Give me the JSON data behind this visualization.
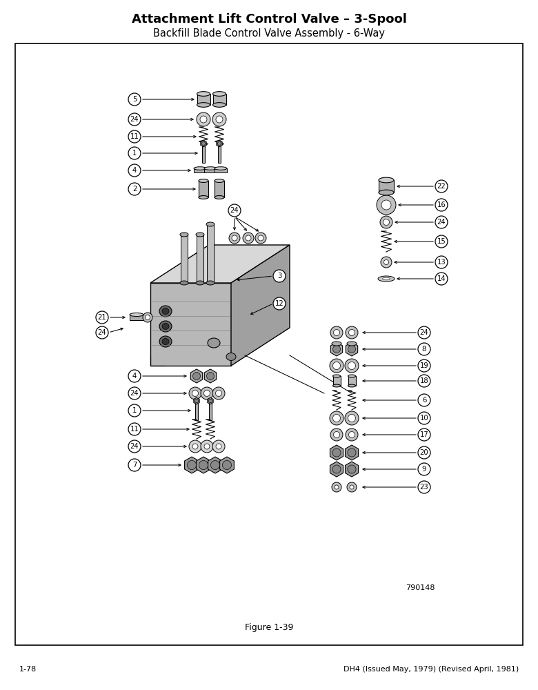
{
  "title_main": "Attachment Lift Control Valve – 3-Spool",
  "title_sub": "Backfill Blade Control Valve Assembly - 6-Way",
  "figure_label": "Figure 1-39",
  "part_number": "790148",
  "page_left": "1-78",
  "page_right": "DH4 (Issued May, 1979) (Revised April, 1981)",
  "bg_color": "#ffffff",
  "border_color": "#000000",
  "text_color": "#000000"
}
